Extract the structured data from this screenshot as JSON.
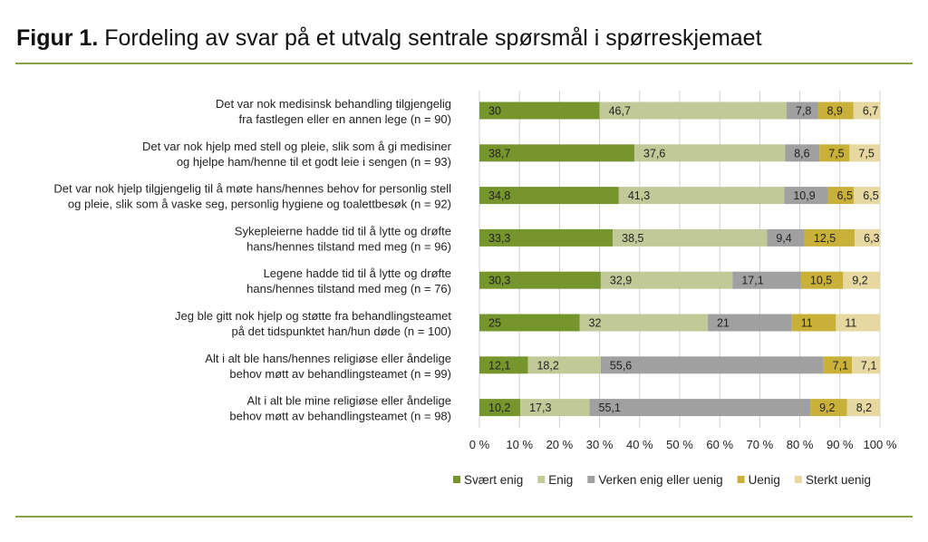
{
  "figure": {
    "label": "Figur 1.",
    "title": "Fordeling av svar på et utvalg sentrale spørsmål i spørreskjemaet"
  },
  "chart_data": {
    "type": "bar",
    "orientation": "horizontal",
    "stacked": "100%",
    "categories": [
      [
        "Det var nok medisinsk behandling tilgjengelig",
        "fra fastlegen eller en annen lege (n = 90)"
      ],
      [
        "Det var nok hjelp med stell og pleie, slik som å gi medisiner",
        "og hjelpe ham/henne til et godt leie i sengen (n = 93)"
      ],
      [
        "Det var nok hjelp tilgjengelig til å møte hans/hennes behov for personlig stell",
        "og pleie, slik som å vaske seg, personlig hygiene og toalettbesøk (n = 92)"
      ],
      [
        "Sykepleierne hadde tid til å lytte og drøfte",
        "hans/hennes tilstand med meg (n = 96)"
      ],
      [
        "Legene hadde tid til å lytte og drøfte",
        "hans/hennes tilstand med meg (n = 76)"
      ],
      [
        "Jeg ble gitt nok hjelp og støtte fra behandlingsteamet",
        "på det tidspunktet han/hun døde (n = 100)"
      ],
      [
        "Alt i alt ble hans/hennes religiøse eller åndelige",
        "behov møtt av behandlingsteamet (n = 99)"
      ],
      [
        "Alt i alt ble mine religiøse eller åndelige",
        "behov møtt av behandlingsteamet (n = 98)"
      ]
    ],
    "series": [
      {
        "name": "Svært enig",
        "color": "#77952d",
        "values": [
          30,
          38.7,
          34.8,
          33.3,
          30.3,
          25,
          12.1,
          10.2
        ],
        "labels": [
          "30",
          "38,7",
          "34,8",
          "33,3",
          "30,3",
          "25",
          "12,1",
          "10,2"
        ]
      },
      {
        "name": "Enig",
        "color": "#c2c999",
        "values": [
          46.7,
          37.6,
          41.3,
          38.5,
          32.9,
          32,
          18.2,
          17.3
        ],
        "labels": [
          "46,7",
          "37,6",
          "41,3",
          "38,5",
          "32,9",
          "32",
          "18,2",
          "17,3"
        ]
      },
      {
        "name": "Verken enig eller uenig",
        "color": "#a0a0a0",
        "values": [
          7.8,
          8.6,
          10.9,
          9.4,
          17.1,
          21,
          55.6,
          55.1
        ],
        "labels": [
          "7,8",
          "8,6",
          "10,9",
          "9,4",
          "17,1",
          "21",
          "55,6",
          "55,1"
        ]
      },
      {
        "name": "Uenig",
        "color": "#c9b038",
        "values": [
          8.9,
          7.5,
          6.5,
          12.5,
          10.5,
          11,
          7.1,
          9.2
        ],
        "labels": [
          "8,9",
          "7,5",
          "6,5",
          "12,5",
          "10,5",
          "11",
          "7,1",
          "9,2"
        ]
      },
      {
        "name": "Sterkt uenig",
        "color": "#e6d8a0",
        "values": [
          6.7,
          7.5,
          6.5,
          6.3,
          9.2,
          11,
          7.1,
          8.2
        ],
        "labels": [
          "6,7",
          "7,5",
          "6,5",
          "6,3",
          "9,2",
          "11",
          "7,1",
          "8,2"
        ]
      }
    ],
    "xticks": [
      "0 %",
      "10 %",
      "20 %",
      "30 %",
      "40 %",
      "50 %",
      "60 %",
      "70 %",
      "80 %",
      "90 %",
      "100 %"
    ],
    "xlim": [
      0,
      100
    ],
    "grid": true,
    "legend_position": "bottom"
  }
}
